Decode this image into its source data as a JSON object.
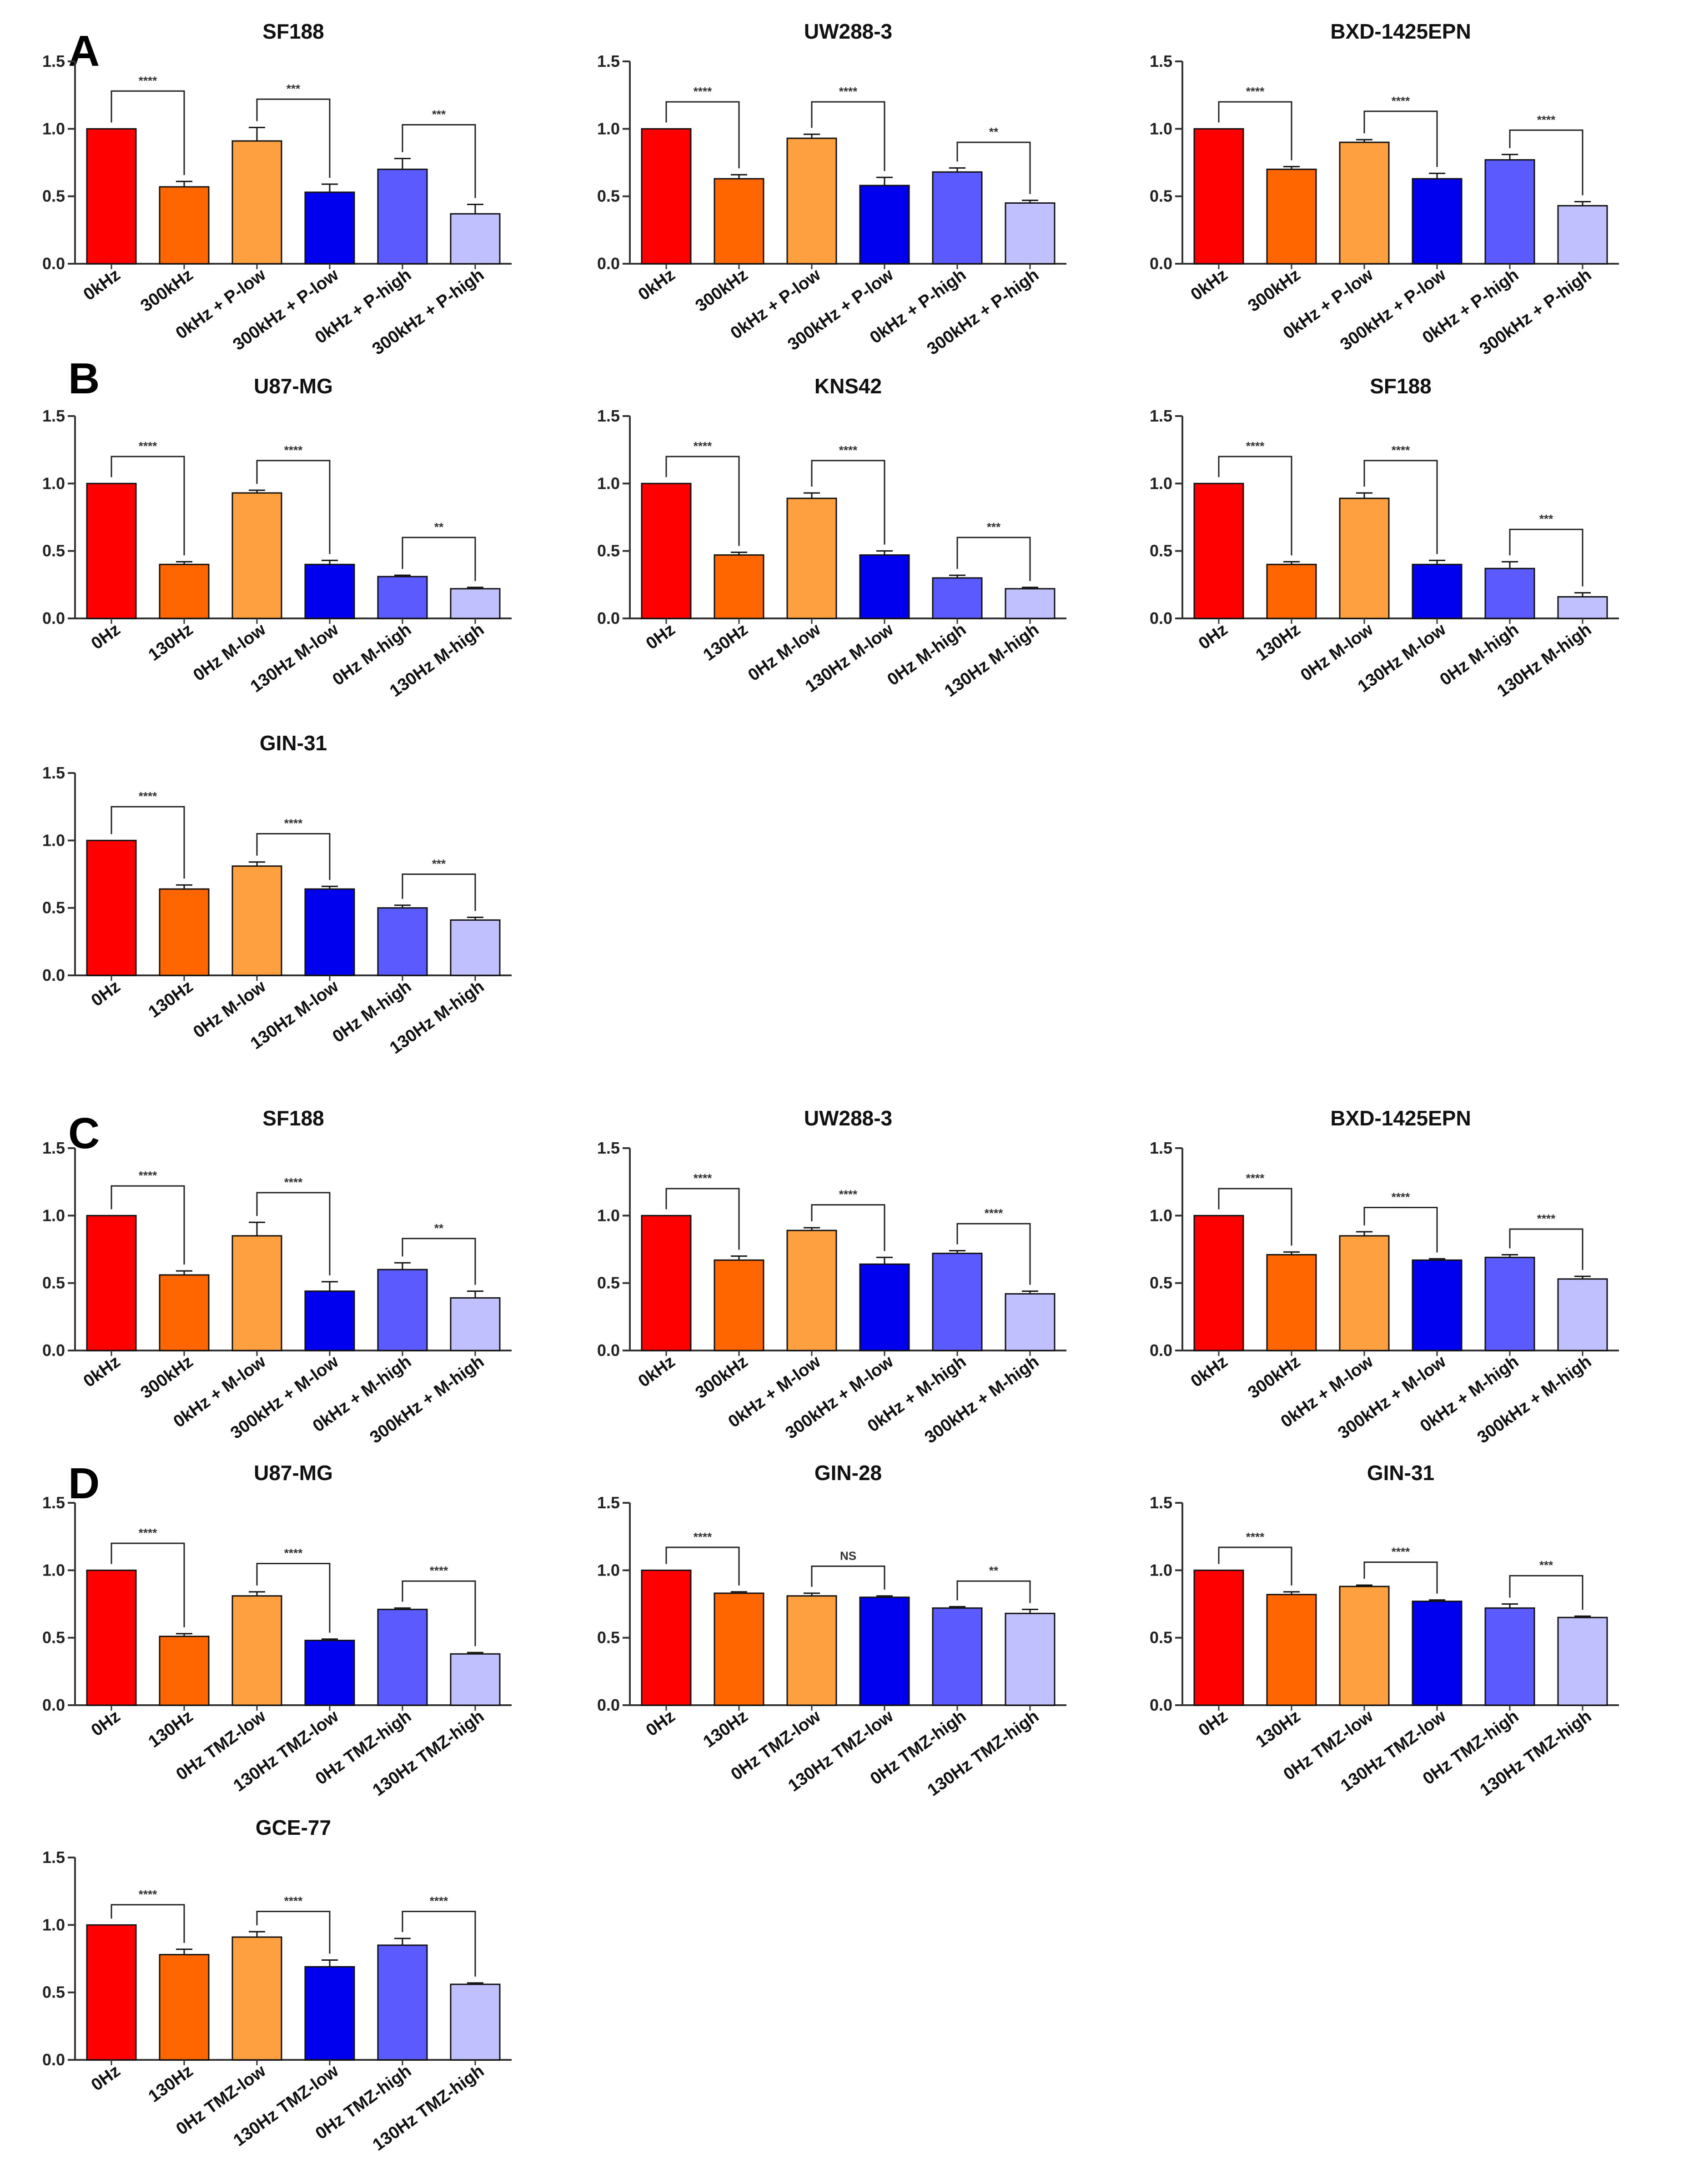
{
  "colors": [
    "#ff0000",
    "#ff6600",
    "#ffa040",
    "#0000ee",
    "#5a5aff",
    "#c0c0ff"
  ],
  "panels": [
    {
      "letter": "A"
    },
    {
      "letter": "B"
    },
    {
      "letter": "C"
    },
    {
      "letter": "D"
    }
  ],
  "chart_data": [
    {
      "type": "bar",
      "title": "SF188",
      "panel": "A",
      "row": 0,
      "col": 0,
      "categories": [
        "0kHz",
        "300kHz",
        "0kHz + P-low",
        "300kHz + P-low",
        "0kHz + P-high",
        "300kHz + P-high"
      ],
      "values": [
        1.0,
        0.57,
        0.91,
        0.53,
        0.7,
        0.37
      ],
      "errors": [
        0.0,
        0.04,
        0.1,
        0.06,
        0.08,
        0.07
      ],
      "ylim": [
        0,
        1.5
      ],
      "yticks": [
        "0.0",
        "0.5",
        "1.0",
        "1.5"
      ],
      "significance": [
        {
          "from": 0,
          "to": 1,
          "label": "****",
          "h": 1.28
        },
        {
          "from": 2,
          "to": 3,
          "label": "***",
          "h": 1.22
        },
        {
          "from": 4,
          "to": 5,
          "label": "***",
          "h": 1.03
        }
      ]
    },
    {
      "type": "bar",
      "title": "UW288-3",
      "panel": "A",
      "row": 0,
      "col": 1,
      "categories": [
        "0kHz",
        "300kHz",
        "0kHz + P-low",
        "300kHz + P-low",
        "0kHz + P-high",
        "300kHz + P-high"
      ],
      "values": [
        1.0,
        0.63,
        0.93,
        0.58,
        0.68,
        0.45
      ],
      "errors": [
        0.0,
        0.03,
        0.03,
        0.06,
        0.03,
        0.02
      ],
      "ylim": [
        0,
        1.5
      ],
      "yticks": [
        "0.0",
        "0.5",
        "1.0",
        "1.5"
      ],
      "significance": [
        {
          "from": 0,
          "to": 1,
          "label": "****",
          "h": 1.2
        },
        {
          "from": 2,
          "to": 3,
          "label": "****",
          "h": 1.2
        },
        {
          "from": 4,
          "to": 5,
          "label": "**",
          "h": 0.9
        }
      ]
    },
    {
      "type": "bar",
      "title": "BXD-1425EPN",
      "panel": "A",
      "row": 0,
      "col": 2,
      "categories": [
        "0kHz",
        "300kHz",
        "0kHz + P-low",
        "300kHz + P-low",
        "0kHz + P-high",
        "300kHz + P-high"
      ],
      "values": [
        1.0,
        0.7,
        0.9,
        0.63,
        0.77,
        0.43
      ],
      "errors": [
        0.0,
        0.02,
        0.02,
        0.04,
        0.04,
        0.03
      ],
      "ylim": [
        0,
        1.5
      ],
      "yticks": [
        "0.0",
        "0.5",
        "1.0",
        "1.5"
      ],
      "significance": [
        {
          "from": 0,
          "to": 1,
          "label": "****",
          "h": 1.2
        },
        {
          "from": 2,
          "to": 3,
          "label": "****",
          "h": 1.13
        },
        {
          "from": 4,
          "to": 5,
          "label": "****",
          "h": 0.99
        }
      ]
    },
    {
      "type": "bar",
      "title": "U87-MG",
      "panel": "B",
      "row": 1,
      "col": 0,
      "categories": [
        "0Hz",
        "130Hz",
        "0Hz M-low",
        "130Hz M-low",
        "0Hz M-high",
        "130Hz M-high"
      ],
      "values": [
        1.0,
        0.4,
        0.93,
        0.4,
        0.31,
        0.22
      ],
      "errors": [
        0.0,
        0.02,
        0.02,
        0.03,
        0.01,
        0.01
      ],
      "ylim": [
        0,
        1.5
      ],
      "yticks": [
        "0.0",
        "0.5",
        "1.0",
        "1.5"
      ],
      "significance": [
        {
          "from": 0,
          "to": 1,
          "label": "****",
          "h": 1.2
        },
        {
          "from": 2,
          "to": 3,
          "label": "****",
          "h": 1.17
        },
        {
          "from": 4,
          "to": 5,
          "label": "**",
          "h": 0.6
        }
      ]
    },
    {
      "type": "bar",
      "title": "KNS42",
      "panel": "B",
      "row": 1,
      "col": 1,
      "categories": [
        "0Hz",
        "130Hz",
        "0Hz M-low",
        "130Hz M-low",
        "0Hz M-high",
        "130Hz M-high"
      ],
      "values": [
        1.0,
        0.47,
        0.89,
        0.47,
        0.3,
        0.22
      ],
      "errors": [
        0.0,
        0.02,
        0.04,
        0.03,
        0.02,
        0.01
      ],
      "ylim": [
        0,
        1.5
      ],
      "yticks": [
        "0.0",
        "0.5",
        "1.0",
        "1.5"
      ],
      "significance": [
        {
          "from": 0,
          "to": 1,
          "label": "****",
          "h": 1.2
        },
        {
          "from": 2,
          "to": 3,
          "label": "****",
          "h": 1.17
        },
        {
          "from": 4,
          "to": 5,
          "label": "***",
          "h": 0.6
        }
      ]
    },
    {
      "type": "bar",
      "title": "SF188",
      "panel": "B",
      "row": 1,
      "col": 2,
      "categories": [
        "0Hz",
        "130Hz",
        "0Hz M-low",
        "130Hz M-low",
        "0Hz M-high",
        "130Hz M-high"
      ],
      "values": [
        1.0,
        0.4,
        0.89,
        0.4,
        0.37,
        0.16
      ],
      "errors": [
        0.0,
        0.02,
        0.04,
        0.03,
        0.05,
        0.03
      ],
      "ylim": [
        0,
        1.5
      ],
      "yticks": [
        "0.0",
        "0.5",
        "1.0",
        "1.5"
      ],
      "significance": [
        {
          "from": 0,
          "to": 1,
          "label": "****",
          "h": 1.2
        },
        {
          "from": 2,
          "to": 3,
          "label": "****",
          "h": 1.17
        },
        {
          "from": 4,
          "to": 5,
          "label": "***",
          "h": 0.66
        }
      ]
    },
    {
      "type": "bar",
      "title": "GIN-31",
      "panel": "B",
      "row": 2,
      "col": 0,
      "categories": [
        "0Hz",
        "130Hz",
        "0Hz M-low",
        "130Hz M-low",
        "0Hz M-high",
        "130Hz M-high"
      ],
      "values": [
        1.0,
        0.64,
        0.81,
        0.64,
        0.5,
        0.41
      ],
      "errors": [
        0.0,
        0.03,
        0.03,
        0.02,
        0.02,
        0.02
      ],
      "ylim": [
        0,
        1.5
      ],
      "yticks": [
        "0.0",
        "0.5",
        "1.0",
        "1.5"
      ],
      "significance": [
        {
          "from": 0,
          "to": 1,
          "label": "****",
          "h": 1.25
        },
        {
          "from": 2,
          "to": 3,
          "label": "****",
          "h": 1.05
        },
        {
          "from": 4,
          "to": 5,
          "label": "***",
          "h": 0.75
        }
      ]
    },
    {
      "type": "bar",
      "title": "SF188",
      "panel": "C",
      "row": 3,
      "col": 0,
      "categories": [
        "0kHz",
        "300kHz",
        "0kHz + M-low",
        "300kHz + M-low",
        "0kHz + M-high",
        "300kHz + M-high"
      ],
      "values": [
        1.0,
        0.56,
        0.85,
        0.44,
        0.6,
        0.39
      ],
      "errors": [
        0.0,
        0.03,
        0.1,
        0.07,
        0.05,
        0.05
      ],
      "ylim": [
        0,
        1.5
      ],
      "yticks": [
        "0.0",
        "0.5",
        "1.0",
        "1.5"
      ],
      "significance": [
        {
          "from": 0,
          "to": 1,
          "label": "****",
          "h": 1.22
        },
        {
          "from": 2,
          "to": 3,
          "label": "****",
          "h": 1.17
        },
        {
          "from": 4,
          "to": 5,
          "label": "**",
          "h": 0.83
        }
      ]
    },
    {
      "type": "bar",
      "title": "UW288-3",
      "panel": "C",
      "row": 3,
      "col": 1,
      "categories": [
        "0kHz",
        "300kHz",
        "0kHz + M-low",
        "300kHz + M-low",
        "0kHz + M-high",
        "300kHz + M-high"
      ],
      "values": [
        1.0,
        0.67,
        0.89,
        0.64,
        0.72,
        0.42
      ],
      "errors": [
        0.0,
        0.03,
        0.02,
        0.05,
        0.02,
        0.02
      ],
      "ylim": [
        0,
        1.5
      ],
      "yticks": [
        "0.0",
        "0.5",
        "1.0",
        "1.5"
      ],
      "significance": [
        {
          "from": 0,
          "to": 1,
          "label": "****",
          "h": 1.2
        },
        {
          "from": 2,
          "to": 3,
          "label": "****",
          "h": 1.08
        },
        {
          "from": 4,
          "to": 5,
          "label": "****",
          "h": 0.94
        }
      ]
    },
    {
      "type": "bar",
      "title": "BXD-1425EPN",
      "panel": "C",
      "row": 3,
      "col": 2,
      "categories": [
        "0kHz",
        "300kHz",
        "0kHz + M-low",
        "300kHz + M-low",
        "0kHz + M-high",
        "300kHz + M-high"
      ],
      "values": [
        1.0,
        0.71,
        0.85,
        0.67,
        0.69,
        0.53
      ],
      "errors": [
        0.0,
        0.02,
        0.03,
        0.01,
        0.02,
        0.02
      ],
      "ylim": [
        0,
        1.5
      ],
      "yticks": [
        "0.0",
        "0.5",
        "1.0",
        "1.5"
      ],
      "significance": [
        {
          "from": 0,
          "to": 1,
          "label": "****",
          "h": 1.2
        },
        {
          "from": 2,
          "to": 3,
          "label": "****",
          "h": 1.06
        },
        {
          "from": 4,
          "to": 5,
          "label": "****",
          "h": 0.9
        }
      ]
    },
    {
      "type": "bar",
      "title": "U87-MG",
      "panel": "D",
      "row": 4,
      "col": 0,
      "categories": [
        "0Hz",
        "130Hz",
        "0Hz TMZ-low",
        "130Hz TMZ-low",
        "0Hz TMZ-high",
        "130Hz TMZ-high"
      ],
      "values": [
        1.0,
        0.51,
        0.81,
        0.48,
        0.71,
        0.38
      ],
      "errors": [
        0.0,
        0.02,
        0.03,
        0.01,
        0.01,
        0.01
      ],
      "ylim": [
        0,
        1.5
      ],
      "yticks": [
        "0.0",
        "0.5",
        "1.0",
        "1.5"
      ],
      "significance": [
        {
          "from": 0,
          "to": 1,
          "label": "****",
          "h": 1.2
        },
        {
          "from": 2,
          "to": 3,
          "label": "****",
          "h": 1.05
        },
        {
          "from": 4,
          "to": 5,
          "label": "****",
          "h": 0.92
        }
      ]
    },
    {
      "type": "bar",
      "title": "GIN-28",
      "panel": "D",
      "row": 4,
      "col": 1,
      "categories": [
        "0Hz",
        "130Hz",
        "0Hz TMZ-low",
        "130Hz TMZ-low",
        "0Hz TMZ-high",
        "130Hz TMZ-high"
      ],
      "values": [
        1.0,
        0.83,
        0.81,
        0.8,
        0.72,
        0.68
      ],
      "errors": [
        0.0,
        0.01,
        0.02,
        0.01,
        0.01,
        0.03
      ],
      "ylim": [
        0,
        1.5
      ],
      "yticks": [
        "0.0",
        "0.5",
        "1.0",
        "1.5"
      ],
      "significance": [
        {
          "from": 0,
          "to": 1,
          "label": "****",
          "h": 1.17
        },
        {
          "from": 2,
          "to": 3,
          "label": "NS",
          "h": 1.03
        },
        {
          "from": 4,
          "to": 5,
          "label": "**",
          "h": 0.92
        }
      ]
    },
    {
      "type": "bar",
      "title": "GIN-31",
      "panel": "D",
      "row": 4,
      "col": 2,
      "categories": [
        "0Hz",
        "130Hz",
        "0Hz TMZ-low",
        "130Hz TMZ-low",
        "0Hz TMZ-high",
        "130Hz TMZ-high"
      ],
      "values": [
        1.0,
        0.82,
        0.88,
        0.77,
        0.72,
        0.65
      ],
      "errors": [
        0.0,
        0.02,
        0.01,
        0.01,
        0.03,
        0.01
      ],
      "ylim": [
        0,
        1.5
      ],
      "yticks": [
        "0.0",
        "0.5",
        "1.0",
        "1.5"
      ],
      "significance": [
        {
          "from": 0,
          "to": 1,
          "label": "****",
          "h": 1.17
        },
        {
          "from": 2,
          "to": 3,
          "label": "****",
          "h": 1.06
        },
        {
          "from": 4,
          "to": 5,
          "label": "***",
          "h": 0.96
        }
      ]
    },
    {
      "type": "bar",
      "title": "GCE-77",
      "panel": "D",
      "row": 5,
      "col": 0,
      "categories": [
        "0Hz",
        "130Hz",
        "0Hz TMZ-low",
        "130Hz TMZ-low",
        "0Hz TMZ-high",
        "130Hz TMZ-high"
      ],
      "values": [
        1.0,
        0.78,
        0.91,
        0.69,
        0.85,
        0.56
      ],
      "errors": [
        0.0,
        0.04,
        0.04,
        0.05,
        0.05,
        0.01
      ],
      "ylim": [
        0,
        1.5
      ],
      "yticks": [
        "0.0",
        "0.5",
        "1.0",
        "1.5"
      ],
      "significance": [
        {
          "from": 0,
          "to": 1,
          "label": "****",
          "h": 1.15
        },
        {
          "from": 2,
          "to": 3,
          "label": "****",
          "h": 1.1
        },
        {
          "from": 4,
          "to": 5,
          "label": "****",
          "h": 1.1
        }
      ]
    }
  ]
}
